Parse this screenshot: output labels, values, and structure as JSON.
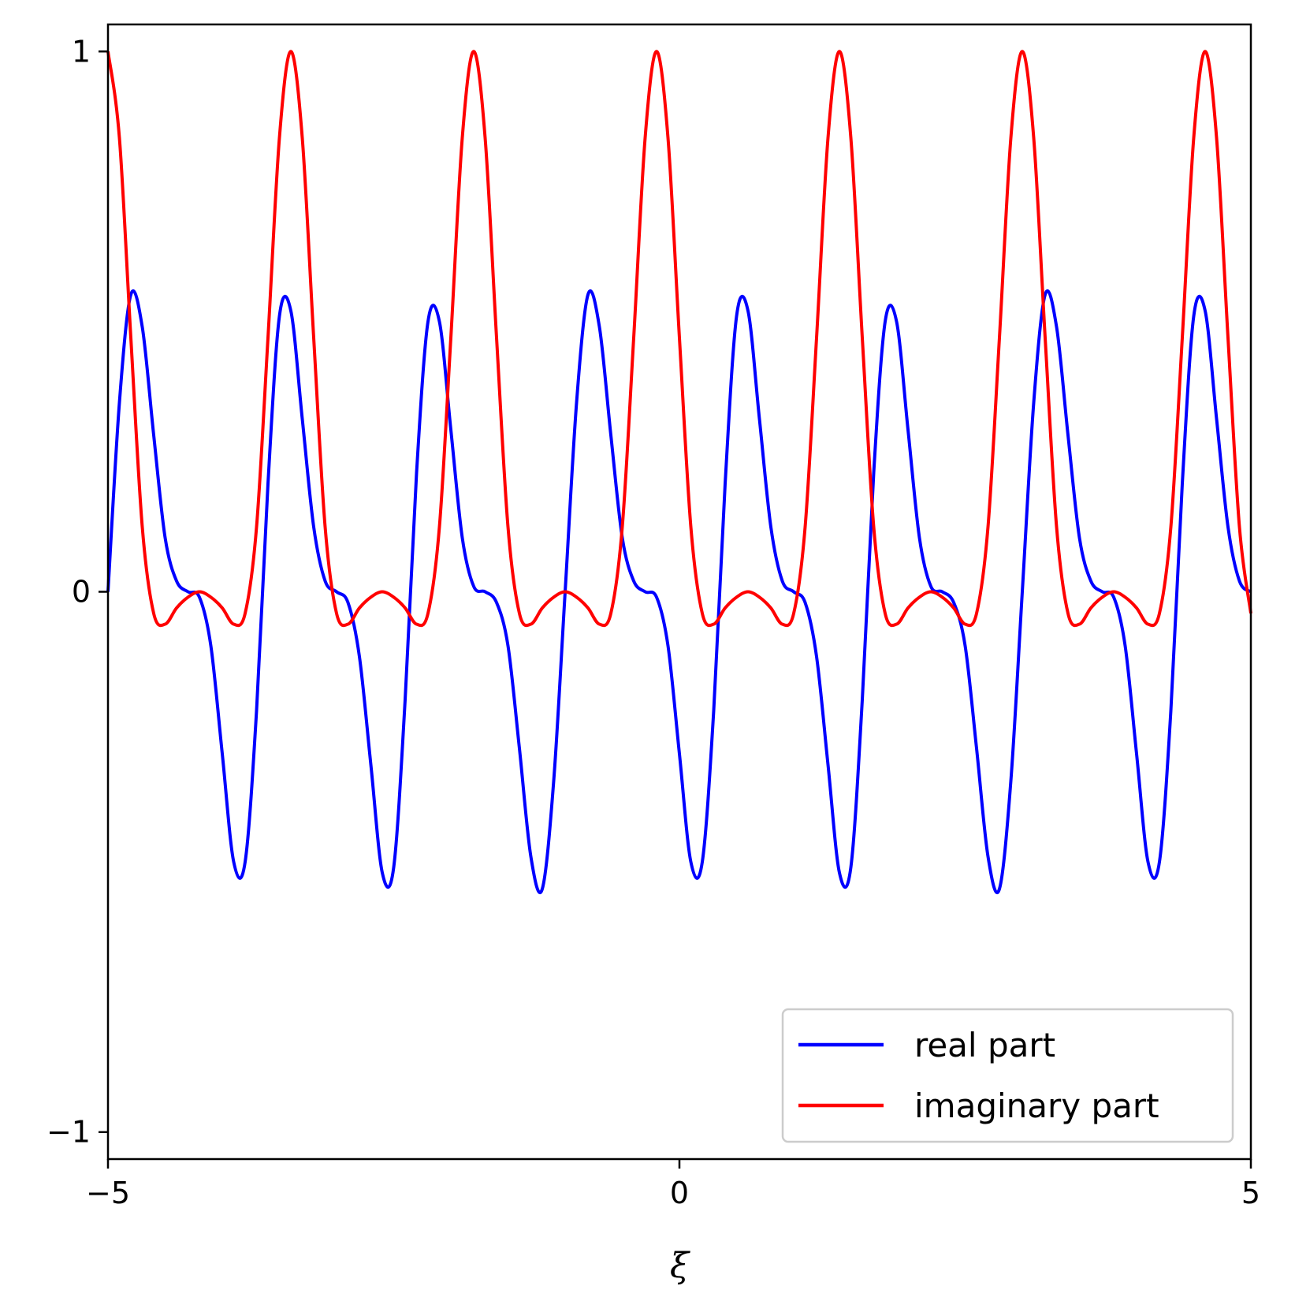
{
  "chart_data": {
    "type": "line",
    "xlabel": "ξ",
    "ylabel": "",
    "xlim": [
      -5,
      5
    ],
    "ylim": [
      -1.05,
      1.05
    ],
    "xticks": [
      {
        "value": -5,
        "label": "−5"
      },
      {
        "value": 0,
        "label": "0"
      },
      {
        "value": 5,
        "label": "5"
      }
    ],
    "yticks": [
      {
        "value": -1,
        "label": "−1"
      },
      {
        "value": 0,
        "label": "0"
      },
      {
        "value": 1,
        "label": "1"
      }
    ],
    "grid": false,
    "legend": "lower-right",
    "series": [
      {
        "name": "real part",
        "color": "#0000ff",
        "x": [
          -5.0,
          -4.9,
          -4.8,
          -4.7,
          -4.6,
          -4.5,
          -4.4,
          -4.3,
          -4.2,
          -4.1,
          -4.0,
          -3.9,
          -3.8,
          -3.7,
          -3.6,
          -3.5,
          -3.4,
          -3.3,
          -3.2,
          -3.1,
          -3.0,
          -2.9,
          -2.8,
          -2.7,
          -2.6,
          -2.5,
          -2.4,
          -2.3,
          -2.2,
          -2.1,
          -2.0,
          -1.9,
          -1.8,
          -1.7,
          -1.6,
          -1.5,
          -1.4,
          -1.3,
          -1.2,
          -1.1,
          -1.0,
          -0.9,
          -0.8,
          -0.7,
          -0.6,
          -0.5,
          -0.4,
          -0.3,
          -0.2,
          -0.1,
          0.0,
          0.1,
          0.2,
          0.3,
          0.4,
          0.5,
          0.6,
          0.7,
          0.8,
          0.9,
          1.0,
          1.1,
          1.2,
          1.3,
          1.4,
          1.5,
          1.6,
          1.7,
          1.8,
          1.9,
          2.0,
          2.1,
          2.2,
          2.3,
          2.4,
          2.5,
          2.6,
          2.7,
          2.8,
          2.9,
          3.0,
          3.1,
          3.2,
          3.3,
          3.4,
          3.5,
          3.6,
          3.7,
          3.8,
          3.9,
          4.0,
          4.1,
          4.2,
          4.3,
          4.4,
          4.5,
          4.6,
          4.7,
          4.8,
          4.9,
          5.0
        ],
        "values": [
          0.0,
          0.35,
          0.55,
          0.49,
          0.29,
          0.1,
          0.02,
          0.0,
          -0.01,
          -0.1,
          -0.3,
          -0.5,
          -0.5,
          -0.22,
          0.2,
          0.51,
          0.52,
          0.32,
          0.12,
          0.02,
          0.0,
          -0.02,
          -0.12,
          -0.32,
          -0.52,
          -0.51,
          -0.2,
          0.22,
          0.5,
          0.5,
          0.3,
          0.1,
          0.01,
          0.0,
          -0.02,
          -0.1,
          -0.29,
          -0.49,
          -0.55,
          -0.35,
          0.0,
          0.35,
          0.55,
          0.49,
          0.29,
          0.1,
          0.02,
          0.0,
          -0.01,
          -0.1,
          -0.3,
          -0.5,
          -0.5,
          -0.22,
          0.2,
          0.51,
          0.52,
          0.32,
          0.12,
          0.02,
          0.0,
          -0.02,
          -0.12,
          -0.32,
          -0.52,
          -0.51,
          -0.2,
          0.22,
          0.5,
          0.5,
          0.3,
          0.1,
          0.01,
          0.0,
          -0.02,
          -0.1,
          -0.29,
          -0.49,
          -0.55,
          -0.35,
          0.0,
          0.35,
          0.55,
          0.49,
          0.29,
          0.1,
          0.02,
          0.0,
          -0.01,
          -0.1,
          -0.3,
          -0.5,
          -0.5,
          -0.22,
          0.2,
          0.51,
          0.52,
          0.32,
          0.12,
          0.02,
          0.0
        ]
      },
      {
        "name": "imaginary part",
        "color": "#ff0000",
        "x": [
          -5.0,
          -4.9,
          -4.8,
          -4.7,
          -4.6,
          -4.5,
          -4.4,
          -4.3,
          -4.2,
          -4.1,
          -4.0,
          -3.9,
          -3.8,
          -3.7,
          -3.6,
          -3.5,
          -3.4,
          -3.3,
          -3.2,
          -3.1,
          -3.0,
          -2.9,
          -2.8,
          -2.7,
          -2.6,
          -2.5,
          -2.4,
          -2.3,
          -2.2,
          -2.1,
          -2.0,
          -1.9,
          -1.8,
          -1.7,
          -1.6,
          -1.5,
          -1.4,
          -1.3,
          -1.2,
          -1.1,
          -1.0,
          -0.9,
          -0.8,
          -0.7,
          -0.6,
          -0.5,
          -0.4,
          -0.3,
          -0.2,
          -0.1,
          0.0,
          0.1,
          0.2,
          0.3,
          0.4,
          0.5,
          0.6,
          0.7,
          0.8,
          0.9,
          1.0,
          1.1,
          1.2,
          1.3,
          1.4,
          1.5,
          1.6,
          1.7,
          1.8,
          1.9,
          2.0,
          2.1,
          2.2,
          2.3,
          2.4,
          2.5,
          2.6,
          2.7,
          2.8,
          2.9,
          3.0,
          3.1,
          3.2,
          3.3,
          3.4,
          3.5,
          3.6,
          3.7,
          3.8,
          3.9,
          4.0,
          4.1,
          4.2,
          4.3,
          4.4,
          4.5,
          4.6,
          4.7,
          4.8,
          4.9,
          5.0
        ],
        "values": [
          1.0,
          0.84,
          0.47,
          0.12,
          -0.04,
          -0.06,
          -0.03,
          -0.01,
          0.0,
          -0.01,
          -0.03,
          -0.06,
          -0.04,
          0.12,
          0.47,
          0.84,
          1.0,
          0.84,
          0.47,
          0.12,
          -0.04,
          -0.06,
          -0.03,
          -0.01,
          0.0,
          -0.01,
          -0.03,
          -0.06,
          -0.04,
          0.12,
          0.47,
          0.84,
          1.0,
          0.84,
          0.47,
          0.12,
          -0.04,
          -0.06,
          -0.03,
          -0.01,
          0.0,
          -0.01,
          -0.03,
          -0.06,
          -0.04,
          0.12,
          0.47,
          0.84,
          1.0,
          0.84,
          0.47,
          0.12,
          -0.04,
          -0.06,
          -0.03,
          -0.01,
          0.0,
          -0.01,
          -0.03,
          -0.06,
          -0.04,
          0.12,
          0.47,
          0.84,
          1.0,
          0.84,
          0.47,
          0.12,
          -0.04,
          -0.06,
          -0.03,
          -0.01,
          0.0,
          -0.01,
          -0.03,
          -0.06,
          -0.04,
          0.12,
          0.47,
          0.84,
          1.0,
          0.84,
          0.47,
          0.12,
          -0.04,
          -0.06,
          -0.03,
          -0.01,
          0.0,
          -0.01,
          -0.03,
          -0.06,
          -0.04,
          0.12,
          0.47,
          0.84,
          1.0,
          0.84,
          0.47,
          0.12,
          -0.04
        ]
      }
    ]
  }
}
